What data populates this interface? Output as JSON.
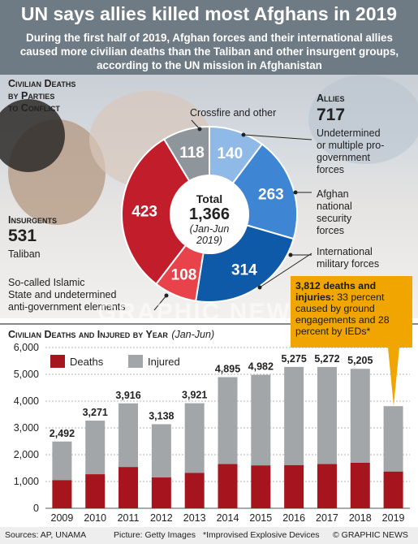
{
  "title": "UN says allies killed most Afghans in 2019",
  "subtitle": "During the first half of 2019, Afghan forces and their international allies caused more civilian deaths than the Taliban and other insurgent groups, according to the UN mission in Afghanistan",
  "donut": {
    "heading_line1": "Civilian Deaths",
    "heading_line2": "by Parties",
    "heading_line3": "to Conflict",
    "total_label": "Total",
    "total_value": "1,366",
    "period_line1": "(Jan-Jun",
    "period_line2": "2019)",
    "allies_label": "Allies",
    "allies_total": "717",
    "insurgents_label": "Insurgents",
    "insurgents_total": "531",
    "labels": {
      "crossfire": "Crossfire and other",
      "undetermined_pro_1": "Undetermined",
      "undetermined_pro_2": "or multiple pro-",
      "undetermined_pro_3": "government",
      "undetermined_pro_4": "forces",
      "afghan_1": "Afghan",
      "afghan_2": "national",
      "afghan_3": "security",
      "afghan_4": "forces",
      "intl_1": "International",
      "intl_2": "military forces",
      "taliban": "Taliban",
      "is_1": "So-called Islamic",
      "is_2": "State and undetermined",
      "is_3": "anti-government elements"
    }
  },
  "callout": {
    "bold": "3,812 deaths and injuries:",
    "text": " 33 percent caused by ground engagements and 28 percent by IEDs*"
  },
  "bar": {
    "heading": "Civilian Deaths and Injured by Year",
    "heading_period": "(Jan-Jun)",
    "legend_deaths": "Deaths",
    "legend_injured": "Injured"
  },
  "footer": {
    "sources": "Sources: AP, UNAMA",
    "picture": "Picture: Getty Images",
    "note": "*Improvised Explosive Devices",
    "credit": "© GRAPHIC NEWS"
  },
  "watermark": "GRAPHIC NEWS",
  "colors": {
    "header_bg": "#6e7a84",
    "crossfire": "#8e969c",
    "undetermined_pro": "#8fb9e6",
    "afghan_forces": "#3e86d4",
    "international": "#0f5aa8",
    "is_anti_gov": "#e8434b",
    "taliban": "#c21d2b",
    "deaths": "#a6141d",
    "injured": "#a3a6a9",
    "callout": "#f0a500"
  },
  "chart_data": [
    {
      "type": "pie",
      "title": "Civilian Deaths by Parties to Conflict",
      "total": 1366,
      "categories": [
        "Undetermined or multiple pro-government forces",
        "Afghan national security forces",
        "International military forces",
        "So-called Islamic State and undetermined anti-government elements",
        "Taliban",
        "Crossfire and other"
      ],
      "values": [
        140,
        263,
        314,
        108,
        423,
        118
      ],
      "groups": {
        "Allies": 717,
        "Insurgents": 531
      }
    },
    {
      "type": "bar",
      "title": "Civilian Deaths and Injured by Year (Jan-Jun)",
      "categories": [
        "2009",
        "2010",
        "2011",
        "2012",
        "2013",
        "2014",
        "2015",
        "2016",
        "2017",
        "2018",
        "2019"
      ],
      "series": [
        {
          "name": "Deaths",
          "values": [
            1050,
            1270,
            1540,
            1150,
            1320,
            1650,
            1600,
            1610,
            1650,
            1700,
            1370
          ]
        },
        {
          "name": "Injured",
          "values": [
            1442,
            2001,
            2376,
            1988,
            2601,
            3245,
            3382,
            3665,
            3622,
            3505,
            2442
          ]
        }
      ],
      "totals": [
        2492,
        3271,
        3916,
        3138,
        3921,
        4895,
        4982,
        5275,
        5272,
        5205,
        3812
      ],
      "total_labels": [
        "2,492",
        "3,271",
        "3,916",
        "3,138",
        "3,921",
        "4,895",
        "4,982",
        "5,275",
        "5,272",
        "5,205",
        ""
      ],
      "yticks": [
        "0",
        "1,000",
        "2,000",
        "3,000",
        "4,000",
        "5,000",
        "6,000"
      ],
      "ylim": [
        0,
        6000
      ],
      "legend": "top-left",
      "grid": true
    }
  ]
}
